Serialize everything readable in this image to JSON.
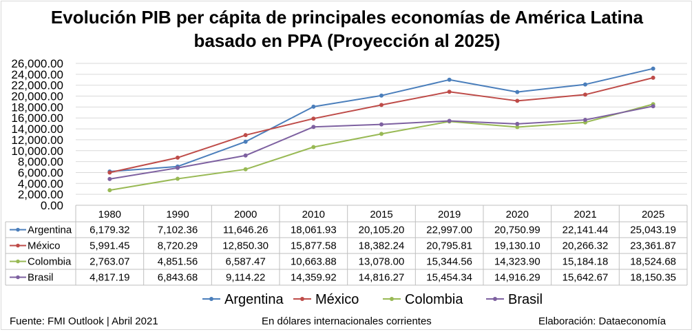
{
  "title_line1": "Evolución PIB per cápita de principales economías de América Latina",
  "title_line2": "basado en PPA (Proyección al 2025)",
  "footer": {
    "source": "Fuente: FMI Outlook | Abril 2021",
    "units": "En dólares internacionales corrientes",
    "credit": "Elaboración: Dataeconomía"
  },
  "colors": {
    "Argentina": "#4a7ebb",
    "México": "#be4b48",
    "Colombia": "#98b954",
    "Brasil": "#7d60a0",
    "grid": "#d9d9d9",
    "axis": "#bfbfbf"
  },
  "chart_data": {
    "type": "line",
    "title": "Evolución PIB per cápita de principales economías de América Latina basado en PPA (Proyección al 2025)",
    "categories": [
      "1980",
      "1990",
      "2000",
      "2010",
      "2015",
      "2019",
      "2020",
      "2021",
      "2025"
    ],
    "series": [
      {
        "name": "Argentina",
        "values": [
          6179.32,
          7102.36,
          11646.26,
          18061.93,
          20105.2,
          22997.0,
          20750.99,
          22141.44,
          25043.19
        ]
      },
      {
        "name": "México",
        "values": [
          5991.45,
          8720.29,
          12850.3,
          15877.58,
          18382.24,
          20795.81,
          19130.1,
          20266.32,
          23361.87
        ]
      },
      {
        "name": "Colombia",
        "values": [
          2763.07,
          4851.56,
          6587.47,
          10663.88,
          13078.0,
          15344.56,
          14323.9,
          15184.18,
          18524.68
        ]
      },
      {
        "name": "Brasil",
        "values": [
          4817.19,
          6843.68,
          9114.22,
          14359.92,
          14816.27,
          15454.34,
          14916.29,
          15642.67,
          18150.35
        ]
      }
    ],
    "table_values": [
      [
        "6,179.32",
        "7,102.36",
        "11,646.26",
        "18,061.93",
        "20,105.20",
        "22,997.00",
        "20,750.99",
        "22,141.44",
        "25,043.19"
      ],
      [
        "5,991.45",
        "8,720.29",
        "12,850.30",
        "15,877.58",
        "18,382.24",
        "20,795.81",
        "19,130.10",
        "20,266.32",
        "23,361.87"
      ],
      [
        "2,763.07",
        "4,851.56",
        "6,587.47",
        "10,663.88",
        "13,078.00",
        "15,344.56",
        "14,323.90",
        "15,184.18",
        "18,524.68"
      ],
      [
        "4,817.19",
        "6,843.68",
        "9,114.22",
        "14,359.92",
        "14,816.27",
        "15,454.34",
        "14,916.29",
        "15,642.67",
        "18,150.35"
      ]
    ],
    "y_ticks": [
      "0.00",
      "2,000.00",
      "4,000.00",
      "6,000.00",
      "8,000.00",
      "10,000.00",
      "12,000.00",
      "14,000.00",
      "16,000.00",
      "18,000.00",
      "20,000.00",
      "22,000.00",
      "24,000.00",
      "26,000.00"
    ],
    "ylim": [
      0,
      26000
    ],
    "grid": true,
    "legend_position": "bottom",
    "data_table": true
  }
}
